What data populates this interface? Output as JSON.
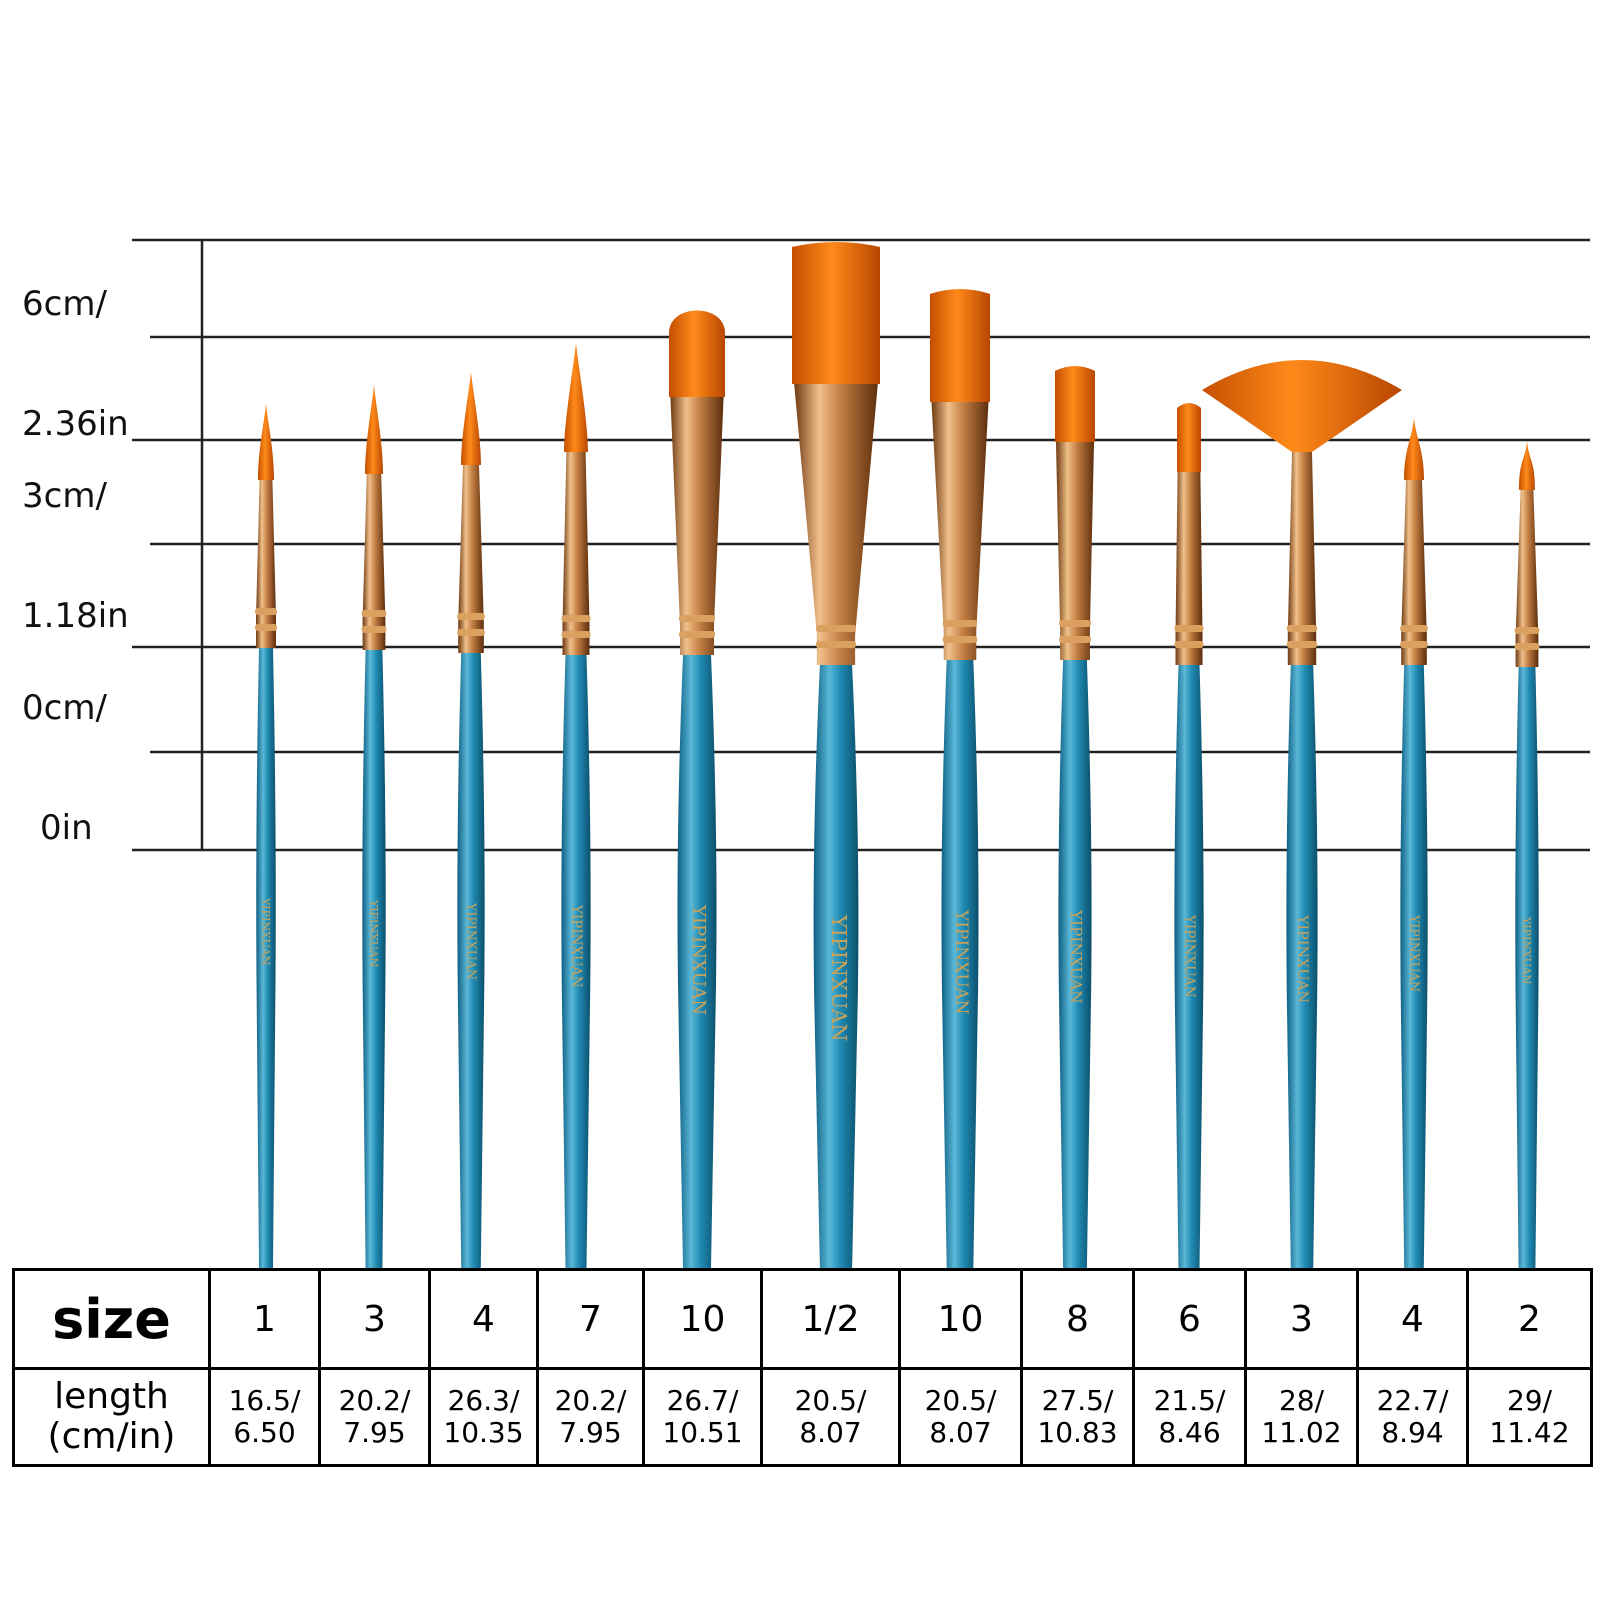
{
  "scale_labels": [
    {
      "cm": "6cm/",
      "in": "2.36in"
    },
    {
      "cm": "3cm/",
      "in": "1.18in"
    },
    {
      "cm": "0cm/",
      "in": "0in"
    }
  ],
  "colors": {
    "handle": "#1f7fa6",
    "handle_highlight": "#5ab8d8",
    "ferrule": "#b8733a",
    "ferrule_highlight": "#f0c08a",
    "bristle": "#e36a00",
    "bristle_tip": "#c44f00",
    "grid_line": "#222222"
  },
  "brush_imprint": "YIPINXUAN",
  "table": {
    "size_header": "size",
    "length_header_line1": "length",
    "length_header_line2": "(cm/in)",
    "brushes": [
      {
        "size": "1",
        "length_cm": "16.5/",
        "length_in": "6.50",
        "head": "round"
      },
      {
        "size": "3",
        "length_cm": "20.2/",
        "length_in": "7.95",
        "head": "round"
      },
      {
        "size": "4",
        "length_cm": "26.3/",
        "length_in": "10.35",
        "head": "round"
      },
      {
        "size": "7",
        "length_cm": "20.2/",
        "length_in": "7.95",
        "head": "round"
      },
      {
        "size": "10",
        "length_cm": "26.7/",
        "length_in": "10.51",
        "head": "filbert"
      },
      {
        "size": "1/2",
        "length_cm": "20.5/",
        "length_in": "8.07",
        "head": "flat"
      },
      {
        "size": "10",
        "length_cm": "20.5/",
        "length_in": "8.07",
        "head": "flat"
      },
      {
        "size": "8",
        "length_cm": "27.5/",
        "length_in": "10.83",
        "head": "flat"
      },
      {
        "size": "6",
        "length_cm": "21.5/",
        "length_in": "8.46",
        "head": "flat"
      },
      {
        "size": "3",
        "length_cm": "28/",
        "length_in": "11.02",
        "head": "fan"
      },
      {
        "size": "4",
        "length_cm": "22.7/",
        "length_in": "8.94",
        "head": "round"
      },
      {
        "size": "2",
        "length_cm": "29/",
        "length_in": "11.42",
        "head": "round"
      }
    ]
  }
}
